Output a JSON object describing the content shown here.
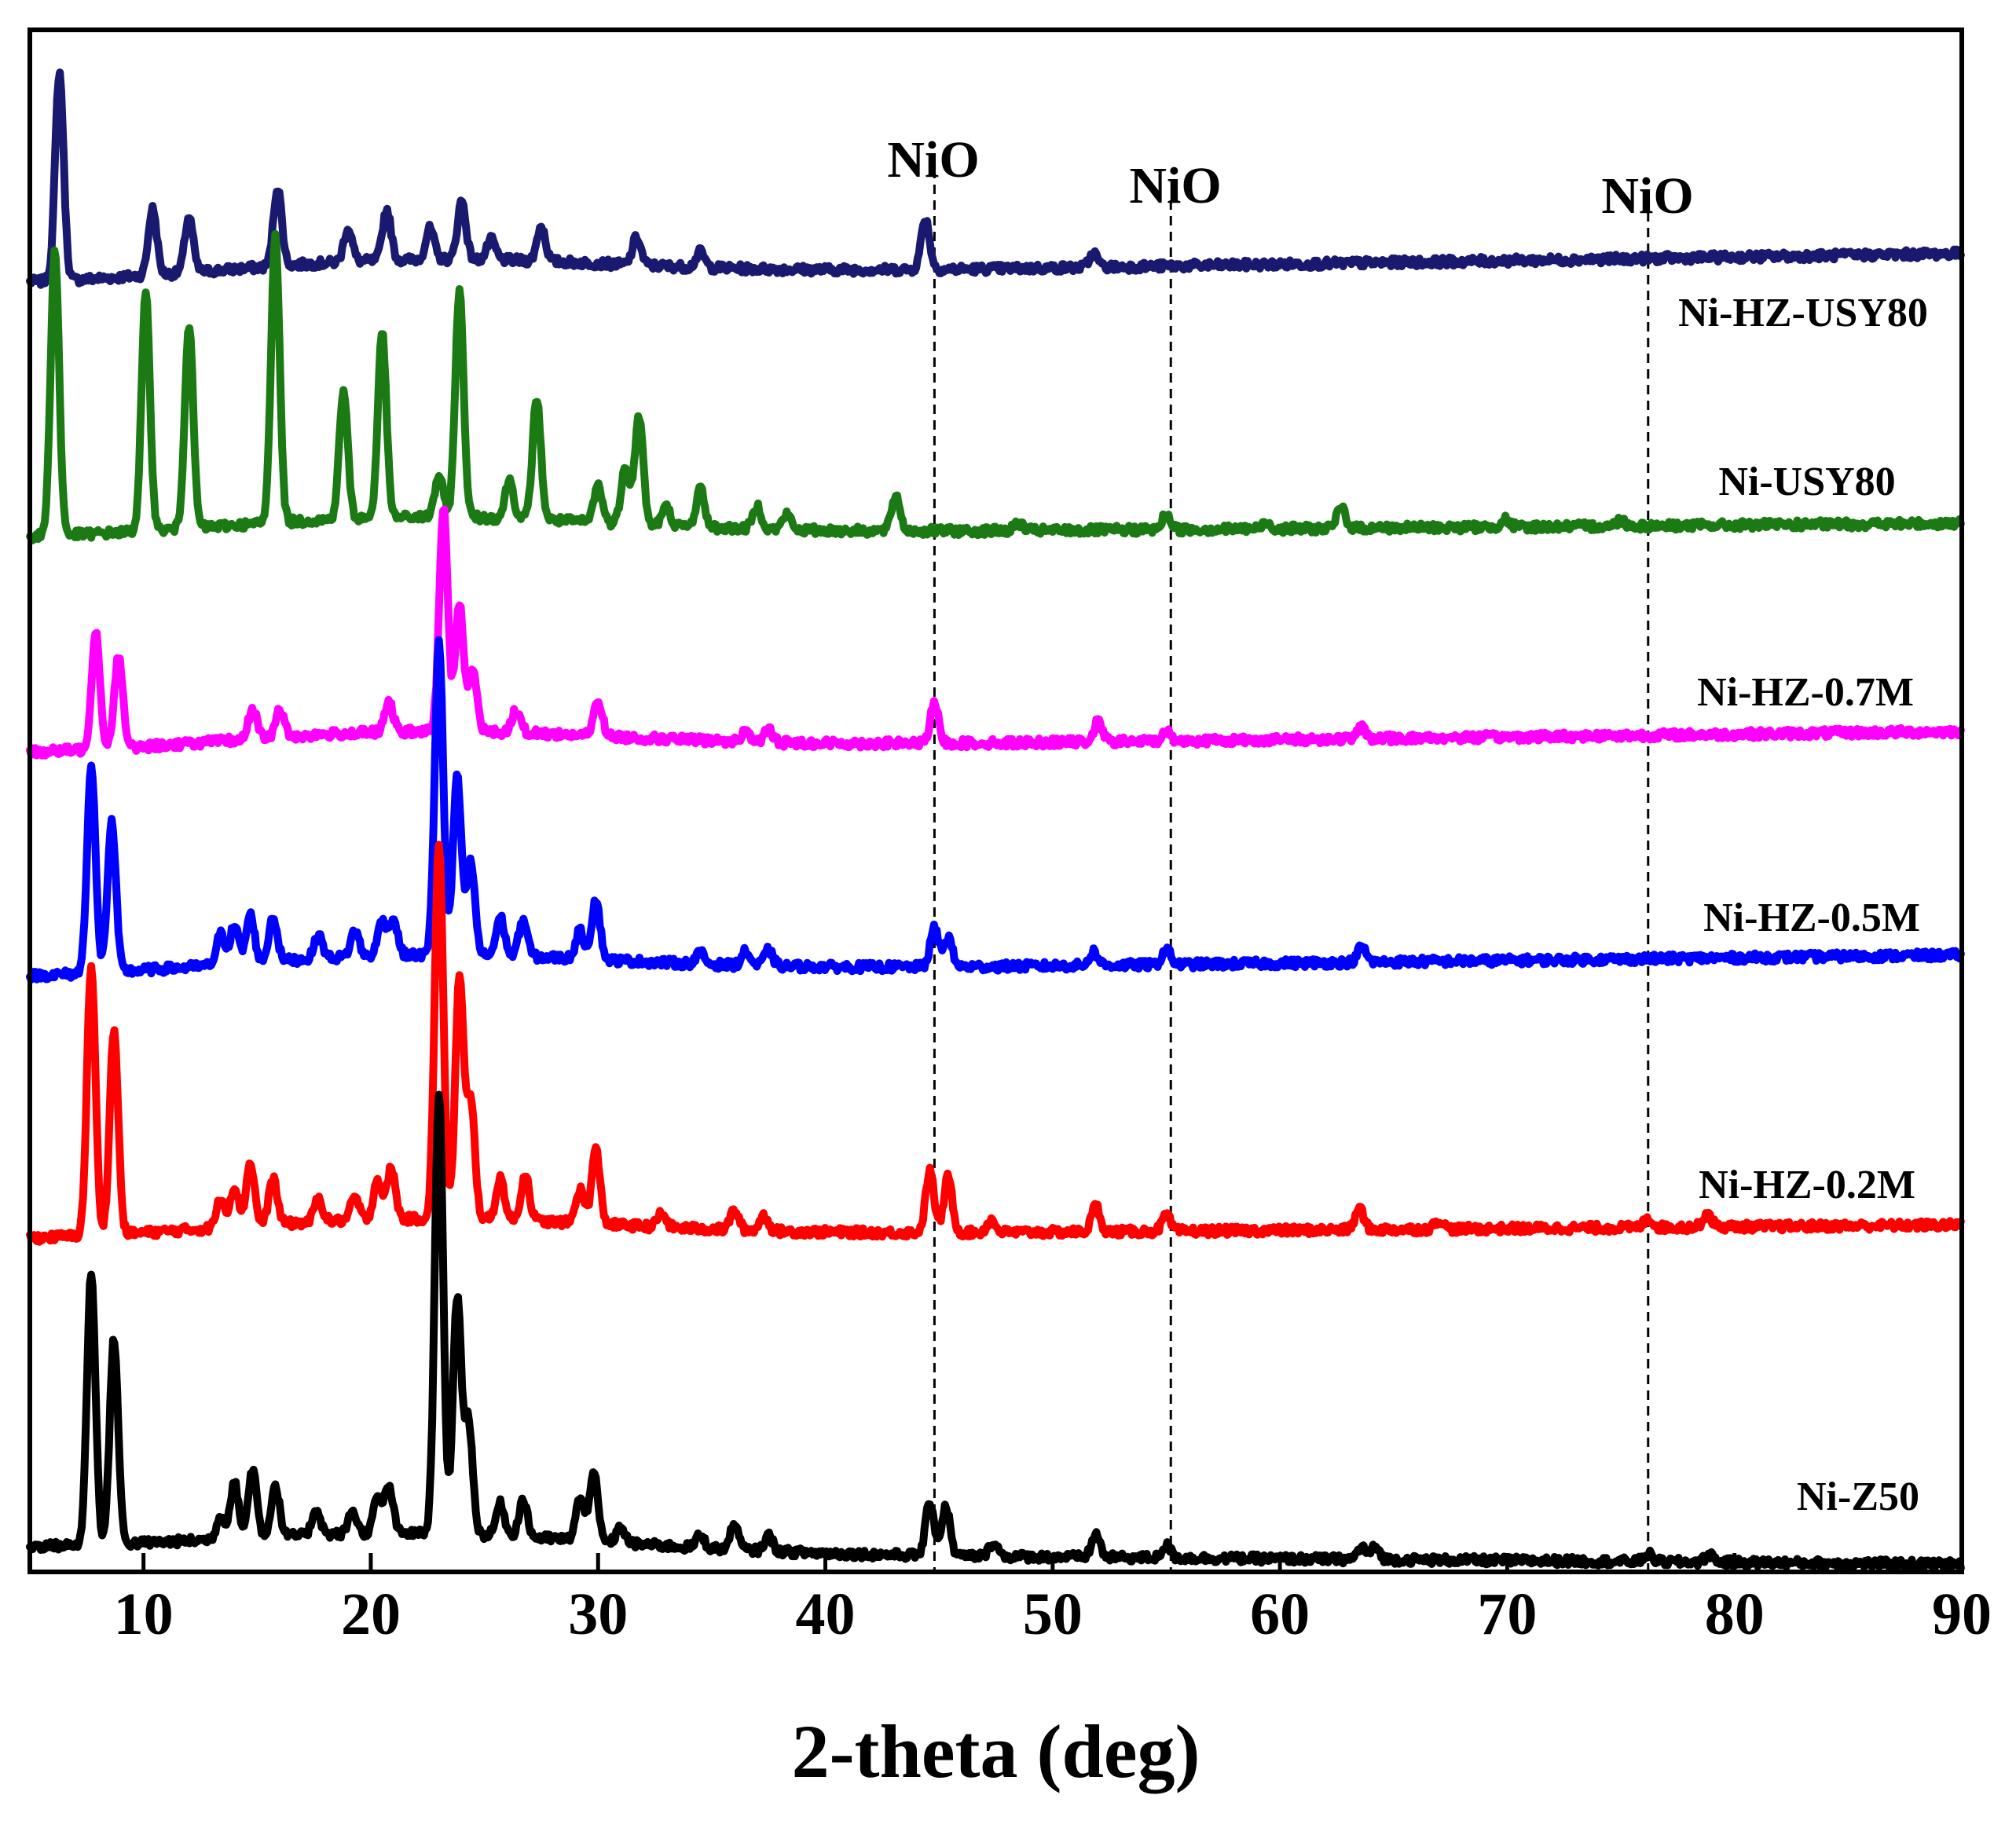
{
  "chart_data": {
    "type": "line",
    "title": "",
    "xlabel": "2-theta (deg)",
    "ylabel": "",
    "xlim": [
      5,
      90
    ],
    "ylim": [
      0,
      100
    ],
    "grid": false,
    "xticks": [
      10,
      20,
      30,
      40,
      50,
      60,
      70,
      80,
      90
    ],
    "xtick_labels": [
      "10",
      "20",
      "30",
      "40",
      "50",
      "60",
      "70",
      "80",
      "90"
    ],
    "annotations": [
      {
        "label": "NiO",
        "x": 44.8,
        "y": 92
      },
      {
        "label": "NiO",
        "x": 55.2,
        "y": 90
      },
      {
        "label": "NiO",
        "x": 76.2,
        "y": 89
      }
    ],
    "reference_lines_x": [
      44.8,
      55.2,
      76.2
    ],
    "series": [
      {
        "name": "Ni-HZ-USY80",
        "color": "#191970",
        "baseline": 83.5,
        "end_level": 85.5,
        "peaks": [
          [
            6.3,
            13.5
          ],
          [
            10.4,
            4.3
          ],
          [
            12.0,
            3.6
          ],
          [
            15.9,
            5.1
          ],
          [
            19.0,
            2.2
          ],
          [
            20.7,
            3.3
          ],
          [
            22.6,
            2.0
          ],
          [
            24.0,
            3.8
          ],
          [
            25.3,
            1.3
          ],
          [
            27.5,
            2.3
          ],
          [
            31.7,
            1.8
          ],
          [
            34.5,
            1.0
          ],
          [
            44.4,
            3.3
          ],
          [
            51.8,
            0.9
          ]
        ]
      },
      {
        "name": "Ni-USY80",
        "color": "#1b7a14",
        "baseline": 67,
        "end_level": 68,
        "peaks": [
          [
            6.1,
            18.5
          ],
          [
            10.1,
            15.3
          ],
          [
            12.0,
            13.2
          ],
          [
            15.8,
            18.8
          ],
          [
            18.8,
            8.3
          ],
          [
            20.5,
            12.0
          ],
          [
            23.0,
            2.7
          ],
          [
            23.9,
            14.6
          ],
          [
            26.1,
            2.5
          ],
          [
            27.3,
            7.8
          ],
          [
            30.0,
            2.4
          ],
          [
            31.2,
            3.8
          ],
          [
            31.8,
            7.0
          ],
          [
            33.0,
            1.2
          ],
          [
            34.5,
            2.5
          ],
          [
            37.0,
            1.5
          ],
          [
            38.3,
            1.0
          ],
          [
            43.1,
            2.3
          ],
          [
            48.5,
            0.5
          ],
          [
            55.0,
            1.0
          ],
          [
            59.4,
            0.4
          ],
          [
            62.7,
            1.4
          ],
          [
            69.9,
            0.5
          ],
          [
            75.0,
            0.4
          ]
        ]
      },
      {
        "name": "Ni-HZ-0.7M",
        "color": "#ff00ff",
        "baseline": 53,
        "end_level": 54.5,
        "peaks": [
          [
            7.9,
            7.6
          ],
          [
            8.9,
            6.0
          ],
          [
            14.8,
            2.0
          ],
          [
            16.0,
            1.8
          ],
          [
            20.8,
            1.9
          ],
          [
            23.2,
            14.5
          ],
          [
            23.9,
            8.3
          ],
          [
            24.5,
            4.0
          ],
          [
            26.4,
            1.5
          ],
          [
            30.0,
            2.3
          ],
          [
            36.5,
            0.7
          ],
          [
            37.5,
            0.8
          ],
          [
            44.8,
            2.5
          ],
          [
            52.0,
            1.3
          ],
          [
            55.0,
            0.6
          ],
          [
            63.6,
            0.7
          ]
        ]
      },
      {
        "name": "Ni-HZ-0.5M",
        "color": "#0000ff",
        "baseline": 38.5,
        "end_level": 40,
        "peaks": [
          [
            7.7,
            13.4
          ],
          [
            8.6,
            9.7
          ],
          [
            13.4,
            2.0
          ],
          [
            14.0,
            2.5
          ],
          [
            14.7,
            3.1
          ],
          [
            15.7,
            2.9
          ],
          [
            17.7,
            1.5
          ],
          [
            19.3,
            1.7
          ],
          [
            20.5,
            2.3
          ],
          [
            21.0,
            2.3
          ],
          [
            23.0,
            20.3
          ],
          [
            23.8,
            11.5
          ],
          [
            24.4,
            6.0
          ],
          [
            25.7,
            2.5
          ],
          [
            26.7,
            2.4
          ],
          [
            29.2,
            1.8
          ],
          [
            29.9,
            3.9
          ],
          [
            34.5,
            0.7
          ],
          [
            36.5,
            0.9
          ],
          [
            37.5,
            1.0
          ],
          [
            44.8,
            2.5
          ],
          [
            45.4,
            1.9
          ],
          [
            51.8,
            0.9
          ],
          [
            55.0,
            1.0
          ],
          [
            63.6,
            1.0
          ]
        ]
      },
      {
        "name": "Ni-HZ-0.2M",
        "color": "#ff0000",
        "baseline": 21.5,
        "end_level": 22.5,
        "peaks": [
          [
            7.7,
            17.5
          ],
          [
            8.7,
            13.2
          ],
          [
            13.4,
            1.9
          ],
          [
            14.0,
            2.6
          ],
          [
            14.7,
            4.1
          ],
          [
            15.7,
            3.0
          ],
          [
            17.7,
            1.5
          ],
          [
            19.3,
            1.5
          ],
          [
            20.3,
            2.6
          ],
          [
            20.9,
            3.3
          ],
          [
            23.0,
            24.4
          ],
          [
            23.9,
            15.6
          ],
          [
            24.4,
            7.5
          ],
          [
            25.7,
            2.7
          ],
          [
            26.8,
            3.0
          ],
          [
            29.2,
            2.2
          ],
          [
            29.9,
            4.8
          ],
          [
            32.8,
            0.9
          ],
          [
            36.0,
            1.3
          ],
          [
            37.3,
            1.0
          ],
          [
            44.6,
            4.0
          ],
          [
            45.4,
            3.6
          ],
          [
            47.3,
            0.8
          ],
          [
            51.9,
            1.7
          ],
          [
            55.0,
            1.0
          ],
          [
            63.5,
            1.4
          ],
          [
            67.0,
            0.6
          ],
          [
            76.2,
            0.6
          ],
          [
            78.8,
            0.9
          ]
        ]
      },
      {
        "name": "Ni-Z50",
        "color": "#000000",
        "baseline": 1.5,
        "end_level": 0.5,
        "peaks": [
          [
            7.7,
            17.7
          ],
          [
            8.7,
            13.3
          ],
          [
            13.4,
            1.5
          ],
          [
            14.0,
            3.6
          ],
          [
            14.8,
            4.5
          ],
          [
            15.8,
            3.3
          ],
          [
            17.6,
            1.7
          ],
          [
            19.2,
            1.5
          ],
          [
            20.3,
            2.3
          ],
          [
            20.8,
            3.0
          ],
          [
            23.0,
            28.6
          ],
          [
            23.8,
            15.2
          ],
          [
            24.3,
            7.3
          ],
          [
            25.7,
            2.1
          ],
          [
            26.7,
            2.4
          ],
          [
            29.2,
            2.7
          ],
          [
            29.8,
            4.5
          ],
          [
            31.0,
            1.0
          ],
          [
            34.5,
            0.8
          ],
          [
            36.0,
            1.6
          ],
          [
            37.5,
            1.0
          ],
          [
            44.6,
            3.5
          ],
          [
            45.3,
            3.2
          ],
          [
            47.4,
            0.9
          ],
          [
            51.9,
            1.5
          ],
          [
            55.0,
            0.8
          ],
          [
            63.6,
            0.8
          ],
          [
            64.2,
            0.8
          ],
          [
            76.2,
            0.5
          ],
          [
            78.9,
            0.5
          ]
        ]
      }
    ]
  }
}
